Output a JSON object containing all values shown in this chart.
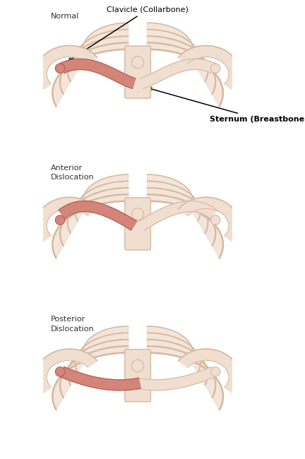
{
  "background_color": "#ffffff",
  "bone_fill": "#f0dfd0",
  "bone_edge": "#d4b8a0",
  "clavicle_fill": "#d4857a",
  "clavicle_edge": "#b06055",
  "label_color": "#333333",
  "panel_labels": [
    "Normal",
    "Anterior\nDislocation",
    "Posterior\nDislocation"
  ],
  "annotations": {
    "clavicle": "Clavicle (Collarbone)",
    "sternum": "Sternum (Breastbone)"
  },
  "fig_width": 4.32,
  "fig_height": 6.5,
  "dpi": 100
}
